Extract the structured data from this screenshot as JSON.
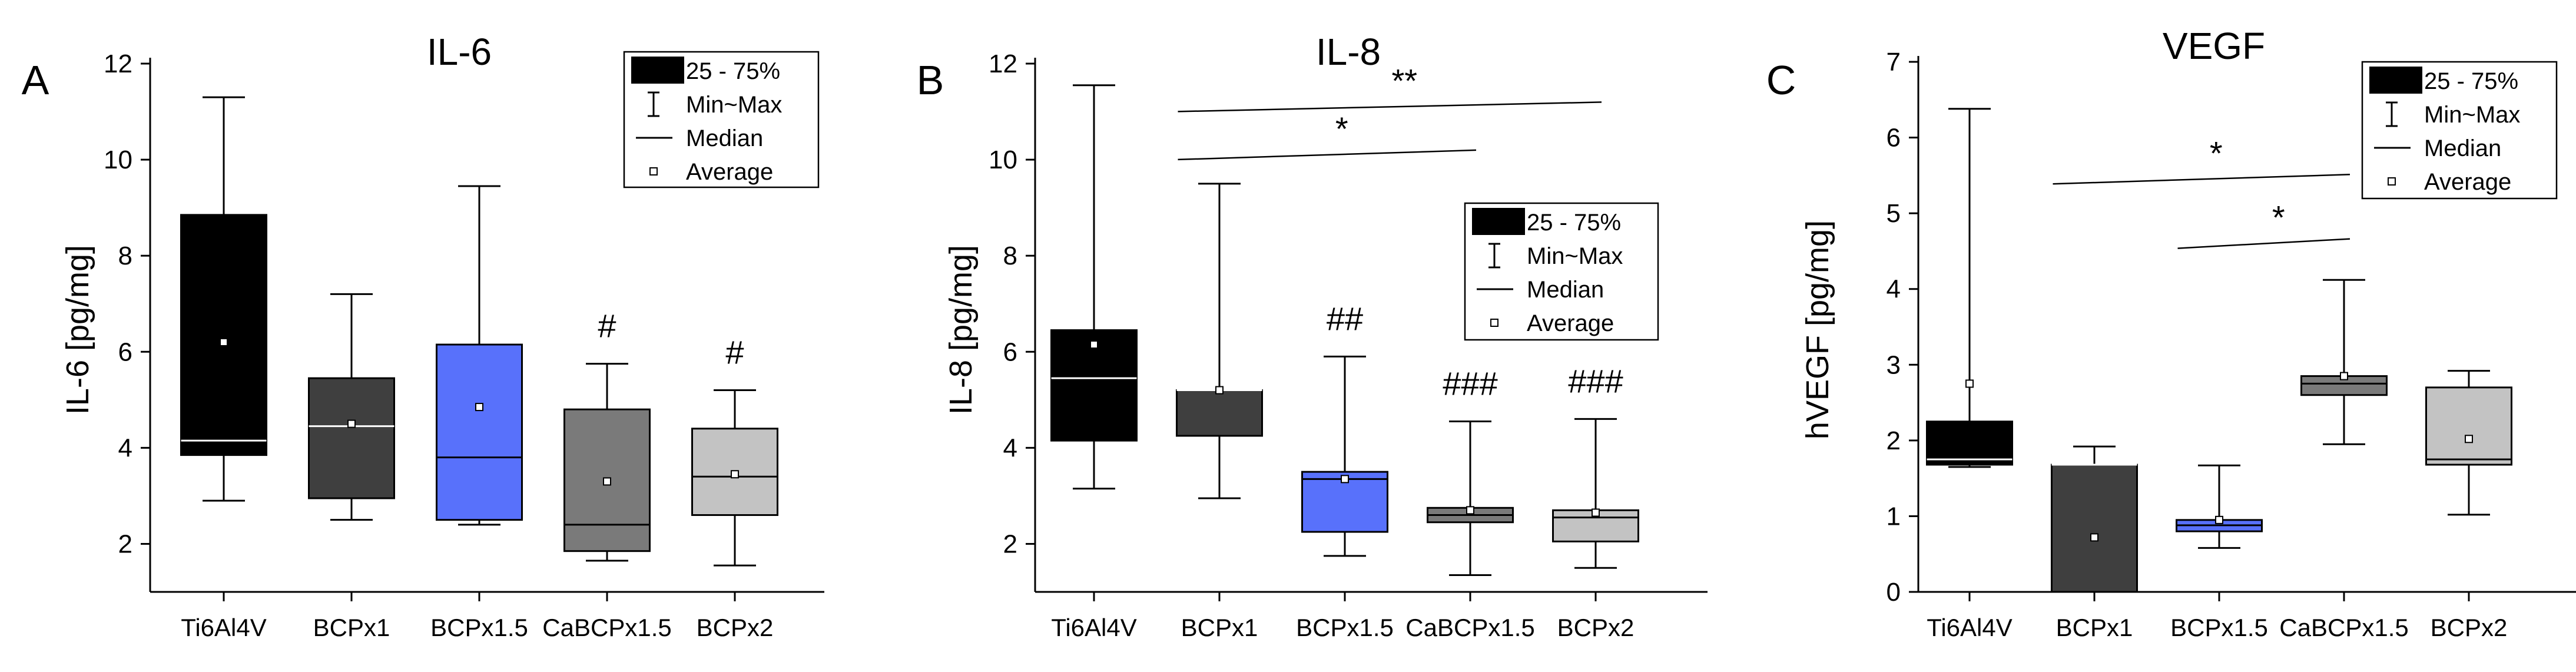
{
  "colors": {
    "Ti6Al4V": "#000000",
    "BCPx1": "#3f3f3f",
    "BCPx1.5": "#5871fb",
    "CaBCPx1.5": "#7a7a7a",
    "BCPx2": "#c3c3c3"
  },
  "chart_data": [
    {
      "type": "box",
      "panel_label": "A",
      "title": "IL-6",
      "xlabel": "",
      "ylabel": "IL-6 [pg/mg]",
      "ylim": [
        1,
        12
      ],
      "yticks": [
        2,
        4,
        6,
        8,
        10,
        12
      ],
      "categories": [
        "Ti6Al4V",
        "BCPx1",
        "BCPx1.5",
        "CaBCPx1.5",
        "BCPx2"
      ],
      "boxes": [
        {
          "min": 2.9,
          "q1": 3.85,
          "median": 4.15,
          "q3": 8.85,
          "max": 11.3,
          "mean": 6.2,
          "annotation": ""
        },
        {
          "min": 2.5,
          "q1": 2.95,
          "median": 4.45,
          "q3": 5.45,
          "max": 7.2,
          "mean": 4.5,
          "annotation": ""
        },
        {
          "min": 2.4,
          "q1": 2.5,
          "median": 3.8,
          "q3": 6.15,
          "max": 9.45,
          "mean": 4.85,
          "annotation": ""
        },
        {
          "min": 1.65,
          "q1": 1.85,
          "median": 2.4,
          "q3": 4.8,
          "max": 5.75,
          "mean": 3.3,
          "annotation": "#"
        },
        {
          "min": 1.55,
          "q1": 2.6,
          "median": 3.4,
          "q3": 4.4,
          "max": 5.2,
          "mean": 3.45,
          "annotation": "#"
        }
      ],
      "comparisons": [],
      "legend": {
        "position": "top-right",
        "items": [
          "25 - 75%",
          "Min~Max",
          "Median",
          "Average"
        ]
      }
    },
    {
      "type": "box",
      "panel_label": "B",
      "title": "IL-8",
      "xlabel": "",
      "ylabel": "IL-8 [pg/mg]",
      "ylim": [
        1,
        12
      ],
      "yticks": [
        2,
        4,
        6,
        8,
        10,
        12
      ],
      "categories": [
        "Ti6Al4V",
        "BCPx1",
        "BCPx1.5",
        "CaBCPx1.5",
        "BCPx2"
      ],
      "boxes": [
        {
          "min": 3.15,
          "q1": 4.15,
          "median": 5.45,
          "q3": 6.45,
          "max": 11.55,
          "mean": 6.15,
          "annotation": ""
        },
        {
          "min": 2.95,
          "q1": 4.25,
          "median": 5.2,
          "q3": 5.2,
          "max": 9.5,
          "mean": 5.2,
          "annotation": ""
        },
        {
          "min": 1.75,
          "q1": 2.25,
          "median": 3.35,
          "q3": 3.5,
          "max": 5.9,
          "mean": 3.35,
          "annotation": "##"
        },
        {
          "min": 1.35,
          "q1": 2.45,
          "median": 2.6,
          "q3": 2.75,
          "max": 4.55,
          "mean": 2.7,
          "annotation": "###"
        },
        {
          "min": 1.5,
          "q1": 2.05,
          "median": 2.55,
          "q3": 2.7,
          "max": 4.6,
          "mean": 2.65,
          "annotation": "###"
        }
      ],
      "comparisons": [
        {
          "from": 1,
          "to": 4,
          "label": "**",
          "level": 11.1
        },
        {
          "from": 1,
          "to": 3,
          "label": "*",
          "level": 10.1
        }
      ],
      "legend": {
        "position": "center-right",
        "items": [
          "25 - 75%",
          "Min~Max",
          "Median",
          "Average"
        ]
      }
    },
    {
      "type": "box",
      "panel_label": "C",
      "title": "VEGF",
      "xlabel": "",
      "ylabel": "hVEGF [pg/mg]",
      "ylim": [
        0,
        7
      ],
      "yticks": [
        0,
        1,
        2,
        3,
        4,
        5,
        6,
        7
      ],
      "categories": [
        "Ti6Al4V",
        "BCPx1",
        "BCPx1.5",
        "CaBCPx1.5",
        "BCPx2"
      ],
      "boxes": [
        {
          "min": 1.65,
          "q1": 1.68,
          "median": 1.75,
          "q3": 2.25,
          "max": 6.38,
          "mean": 2.75,
          "annotation": ""
        },
        {
          "min": 0.0,
          "q1": 0.0,
          "median": 1.68,
          "q3": 1.68,
          "max": 1.92,
          "mean": 0.72,
          "annotation": ""
        },
        {
          "min": 0.58,
          "q1": 0.8,
          "median": 0.88,
          "q3": 0.95,
          "max": 1.67,
          "mean": 0.95,
          "annotation": ""
        },
        {
          "min": 1.95,
          "q1": 2.6,
          "median": 2.75,
          "q3": 2.85,
          "max": 4.12,
          "mean": 2.85,
          "annotation": ""
        },
        {
          "min": 1.02,
          "q1": 1.68,
          "median": 1.75,
          "q3": 2.7,
          "max": 2.92,
          "mean": 2.02,
          "annotation": ""
        }
      ],
      "comparisons": [
        {
          "from": 1,
          "to": 3,
          "label": "*",
          "level": 5.45
        },
        {
          "from": 2,
          "to": 3,
          "label": "*",
          "level": 4.6
        }
      ],
      "legend": {
        "position": "top-right",
        "items": [
          "25 - 75%",
          "Min~Max",
          "Median",
          "Average"
        ]
      }
    }
  ]
}
